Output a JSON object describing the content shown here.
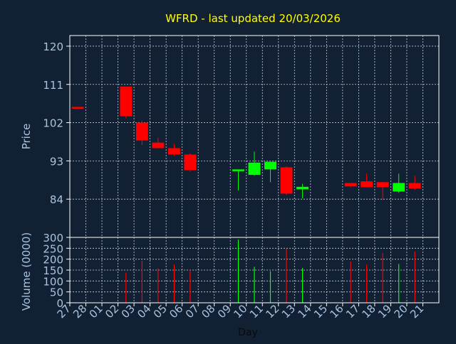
{
  "chart_data": {
    "type": "candlestick",
    "title": "WFRD - last updated 20/03/2026",
    "xlabel": "Day",
    "price_panel": {
      "ylabel": "Price",
      "ylim": [
        75,
        122.5
      ],
      "yticks": [
        84,
        93,
        102,
        111,
        120
      ]
    },
    "volume_panel": {
      "ylabel": "Volume (0000)",
      "ylim": [
        0,
        300
      ],
      "yticks": [
        0,
        50,
        100,
        150,
        200,
        250,
        300
      ]
    },
    "grid": true,
    "x_tick_labels": [
      "27",
      "28",
      "01",
      "02",
      "03",
      "04",
      "05",
      "06",
      "07",
      "08",
      "09",
      "10",
      "11",
      "12",
      "13",
      "14",
      "15",
      "16",
      "17",
      "18",
      "19",
      "20",
      "21"
    ],
    "candles": [
      {
        "day": "27",
        "open": 105.7,
        "close": 105.5,
        "high": 105.7,
        "low": 105.5,
        "volume": null,
        "direction": "down"
      },
      {
        "day": "02",
        "open": 110.5,
        "close": 103.5,
        "high": 110.5,
        "low": 103.0,
        "volume": 138,
        "direction": "down"
      },
      {
        "day": "03",
        "open": 102.0,
        "close": 97.8,
        "high": 102.5,
        "low": 96.7,
        "volume": 193,
        "direction": "down"
      },
      {
        "day": "04",
        "open": 97.3,
        "close": 96.0,
        "high": 98.5,
        "low": 96.0,
        "volume": 158,
        "direction": "down"
      },
      {
        "day": "05",
        "open": 96.0,
        "close": 94.5,
        "high": 97.0,
        "low": 94.2,
        "volume": 175,
        "direction": "down"
      },
      {
        "day": "06",
        "open": 94.5,
        "close": 90.8,
        "high": 94.8,
        "low": 90.5,
        "volume": 145,
        "direction": "down"
      },
      {
        "day": "09",
        "open": 90.6,
        "close": 91.0,
        "high": 91.0,
        "low": 86.0,
        "volume": 290,
        "direction": "up"
      },
      {
        "day": "10",
        "open": 89.7,
        "close": 92.6,
        "high": 95.2,
        "low": 89.5,
        "volume": 165,
        "direction": "up"
      },
      {
        "day": "11",
        "open": 91.0,
        "close": 92.8,
        "high": 92.8,
        "low": 88.0,
        "volume": 145,
        "direction": "up"
      },
      {
        "day": "12",
        "open": 91.5,
        "close": 85.3,
        "high": 91.7,
        "low": 85.0,
        "volume": 250,
        "direction": "down"
      },
      {
        "day": "13",
        "open": 86.3,
        "close": 86.9,
        "high": 87.6,
        "low": 84.2,
        "volume": 160,
        "direction": "up"
      },
      {
        "day": "16",
        "open": 87.8,
        "close": 87.0,
        "high": 87.8,
        "low": 86.8,
        "volume": 190,
        "direction": "down"
      },
      {
        "day": "17",
        "open": 88.2,
        "close": 86.8,
        "high": 90.0,
        "low": 86.8,
        "volume": 175,
        "direction": "down"
      },
      {
        "day": "18",
        "open": 88.0,
        "close": 86.8,
        "high": 88.0,
        "low": 83.8,
        "volume": 228,
        "direction": "down"
      },
      {
        "day": "19",
        "open": 85.8,
        "close": 87.8,
        "high": 90.0,
        "low": 85.5,
        "volume": 178,
        "direction": "up"
      },
      {
        "day": "20",
        "open": 87.8,
        "close": 86.5,
        "high": 89.5,
        "low": 86.2,
        "volume": 235,
        "direction": "down"
      }
    ]
  },
  "colors": {
    "background": "#112033",
    "title": "#ffff00",
    "axis_text": "#a8c4e0",
    "frame": "#ffffff",
    "grid": "#c8d0dc",
    "up": "#00ff00",
    "down": "#ff0000"
  }
}
